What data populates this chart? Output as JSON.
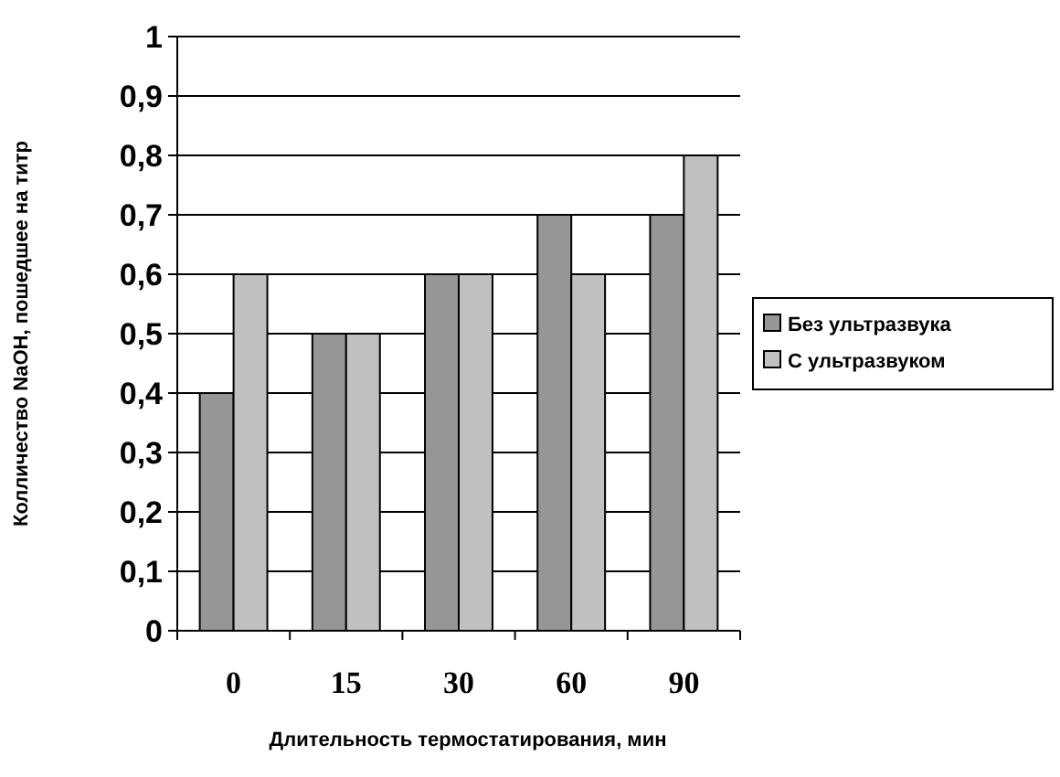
{
  "chart_data": {
    "type": "bar",
    "xlabel": "Длительность термостатирования, мин",
    "ylabel": "Колличество NaOH, пошедшее на титр",
    "categories": [
      "0",
      "15",
      "30",
      "60",
      "90"
    ],
    "series": [
      {
        "name": "Без ультразвука",
        "color": "#969696",
        "values": [
          0.4,
          0.5,
          0.6,
          0.7,
          0.7
        ]
      },
      {
        "name": "С ультразвуком",
        "color": "#c0c0c0",
        "values": [
          0.6,
          0.5,
          0.6,
          0.6,
          0.8
        ]
      }
    ],
    "ylim": [
      0,
      1
    ],
    "yticks": [
      0,
      {
        "value": 0.1,
        "label": "0,1"
      },
      {
        "value": 0.2,
        "label": "0,2"
      },
      {
        "value": 0.3,
        "label": "0,3"
      },
      {
        "value": 0.4,
        "label": "0,4"
      },
      {
        "value": 0.5,
        "label": "0,5"
      },
      {
        "value": 0.6,
        "label": "0,6"
      },
      {
        "value": 0.7,
        "label": "0,7"
      },
      {
        "value": 0.8,
        "label": "0,8"
      },
      {
        "value": 0.9,
        "label": "0,9"
      },
      1
    ],
    "grid": "y",
    "legend": "right"
  }
}
